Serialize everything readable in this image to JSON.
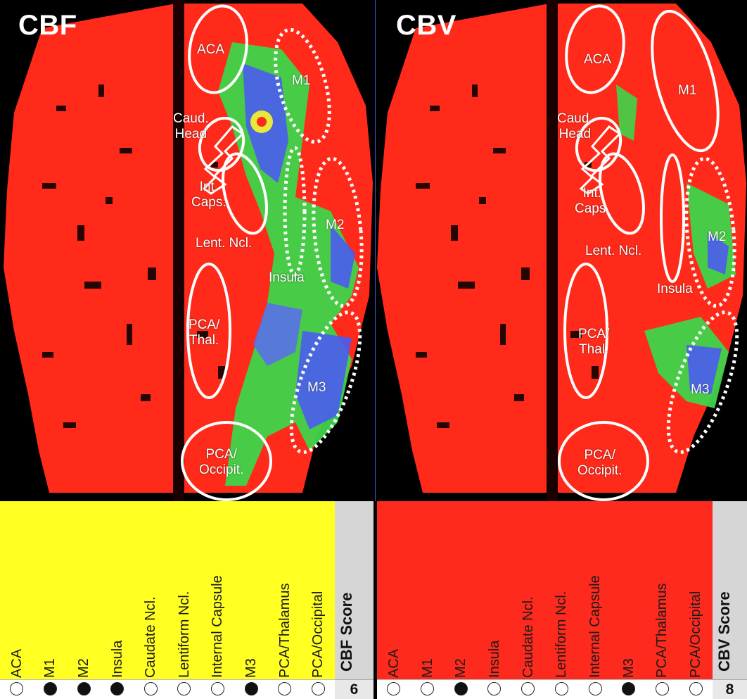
{
  "panels": [
    {
      "id": "cbf",
      "title": "CBF",
      "score_label": "CBF Score",
      "score_value": "6",
      "table_color": "#ffff22",
      "regions": [
        "ACA",
        "M1",
        "M2",
        "Insula",
        "Caudate Ncl.",
        "Lentiform Ncl.",
        "Internal Capsule",
        "M3",
        "PCA/Thalamus",
        "PCA/Occipital"
      ],
      "filled": [
        false,
        true,
        true,
        true,
        false,
        false,
        false,
        true,
        false,
        false
      ],
      "map_labels": {
        "aca": "ACA",
        "m1": "M1",
        "caud": "Caud.\nHead",
        "intcaps": "Int.\nCaps.",
        "lent": "Lent. Ncl.",
        "m2": "M2",
        "insula": "Insula",
        "pcathal": "PCA/\nThal.",
        "m3": "M3",
        "pcaocc": "PCA/\nOccipit."
      }
    },
    {
      "id": "cbv",
      "title": "CBV",
      "score_label": "CBV Score",
      "score_value": "8",
      "table_color": "#ff2a1e",
      "regions": [
        "ACA",
        "M1",
        "M2",
        "Insula",
        "Caudate Ncl.",
        "Lentiform Ncl.",
        "Internal Capsule",
        "M3",
        "PCA/Thalamus",
        "PCA/Occipital"
      ],
      "filled": [
        false,
        false,
        true,
        false,
        false,
        false,
        false,
        true,
        false,
        false
      ],
      "map_labels": {
        "aca": "ACA",
        "m1": "M1",
        "caud": "Caud.\nHead",
        "intcaps": "Int.\nCaps.",
        "lent": "Lent. Ncl.",
        "m2": "M2",
        "insula": "Insula",
        "pcathal": "PCA/\nThal.",
        "m3": "M3",
        "pcaocc": "PCA/\nOccipit."
      }
    }
  ],
  "colors": {
    "tissue": "#ff2a1a",
    "background": "#000000",
    "ischemia_blue": "#4a5cf0",
    "penumbra_green": "#3ed44a",
    "transition_yellow": "#e8e83a",
    "score_bg": "#d6d6d6"
  }
}
